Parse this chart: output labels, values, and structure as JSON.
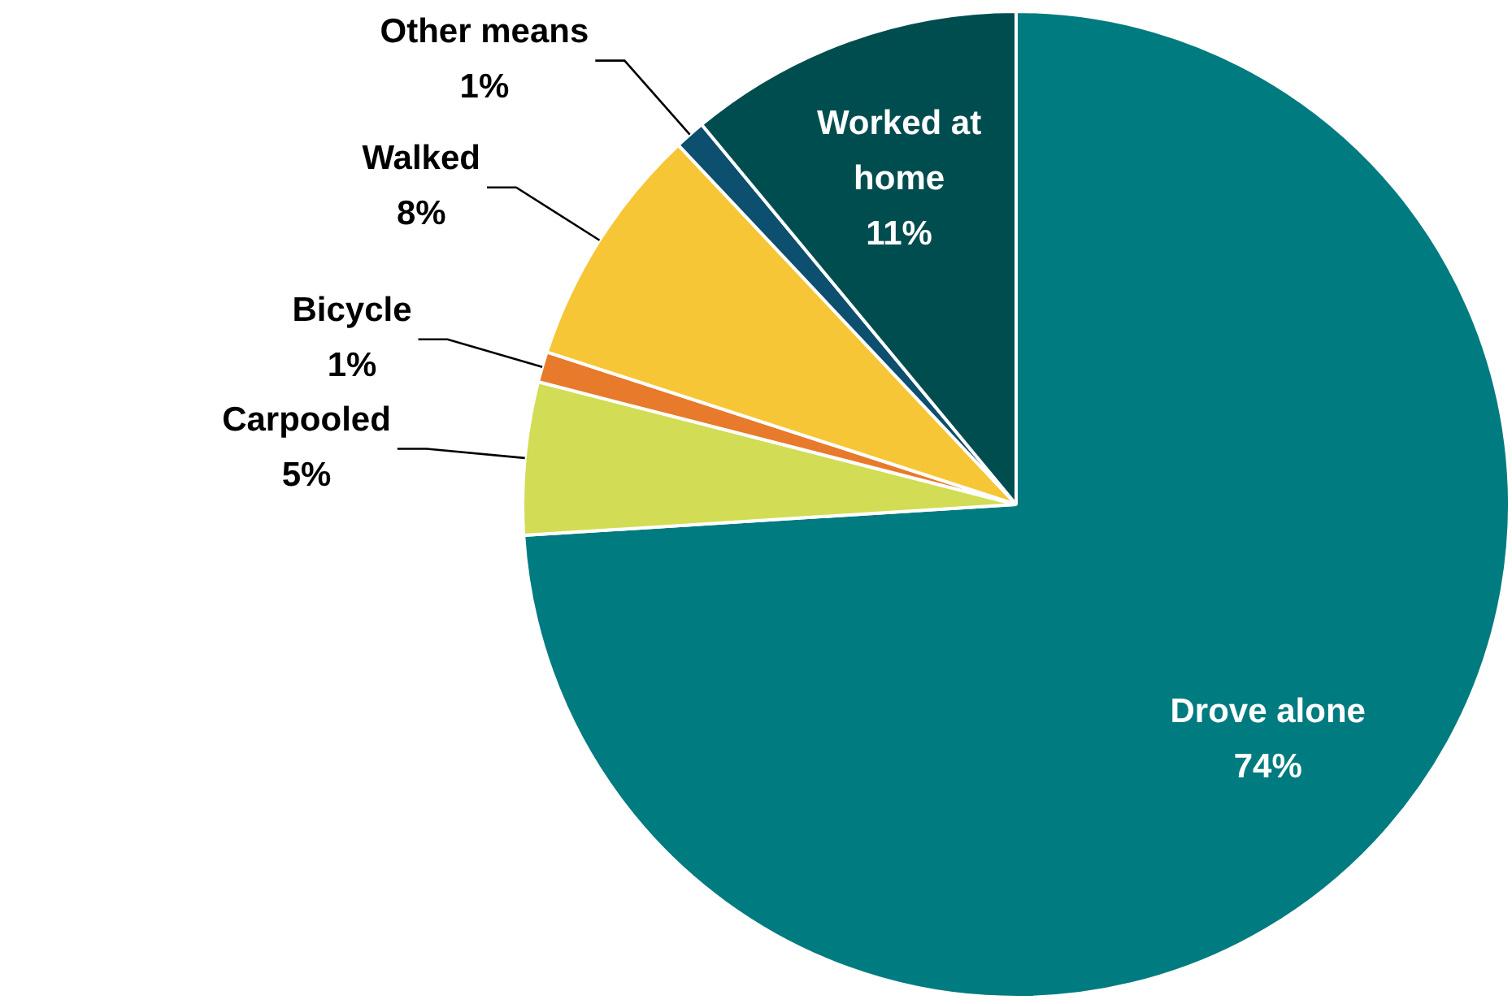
{
  "chart_data": {
    "type": "pie",
    "categories": [
      "Drove alone",
      "Carpooled",
      "Bicycle",
      "Walked",
      "Other means",
      "Worked at home"
    ],
    "values": [
      74,
      5,
      1,
      8,
      1,
      11
    ],
    "value_labels": [
      "74%",
      "5%",
      "1%",
      "8%",
      "1%",
      "11%"
    ],
    "colors": [
      "#007b80",
      "#d2dc55",
      "#e87a2b",
      "#f6c636",
      "#0c4f6e",
      "#004d50"
    ],
    "legend": false
  }
}
